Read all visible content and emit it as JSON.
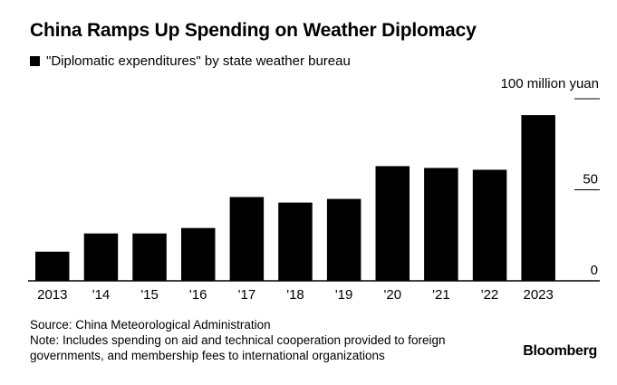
{
  "title": "China Ramps Up Spending on Weather Diplomacy",
  "legend": "\"Diplomatic expenditures\" by state weather bureau",
  "unit_label": "100 million yuan",
  "source": "Source: China Meteorological Administration",
  "note_line1": "Note: Includes spending on aid and technical cooperation provided to foreign",
  "note_line2": "governments, and membership fees to international organizations",
  "brand": "Bloomberg",
  "chart_data": {
    "type": "bar",
    "categories": [
      "2013",
      "'14",
      "'15",
      "'16",
      "'17",
      "'18",
      "'19",
      "'20",
      "'21",
      "'22",
      "2023"
    ],
    "series": [
      {
        "values": [
          16,
          26,
          26,
          29,
          46,
          43,
          45,
          63,
          62,
          61,
          91
        ]
      }
    ],
    "ylim": [
      0,
      100
    ],
    "yticks": [
      0,
      50
    ],
    "ylabel": "100 million yuan",
    "grid": false,
    "bar_color": "#000000"
  }
}
